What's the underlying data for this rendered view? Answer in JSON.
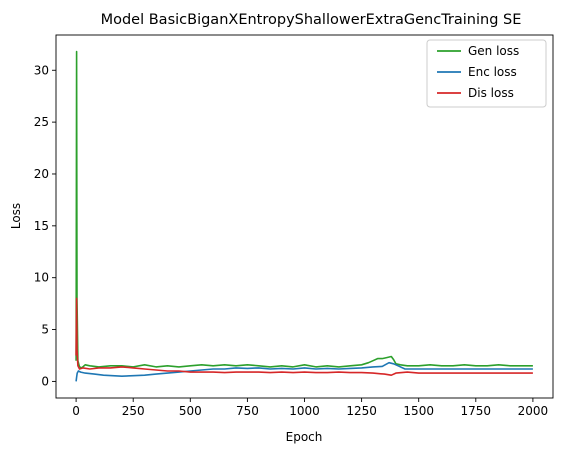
{
  "chart_data": {
    "type": "line",
    "title": "Model BasicBiganXEntropyShallowerExtraGencTraining SE",
    "xlabel": "Epoch",
    "ylabel": "Loss",
    "xlim": [
      -88,
      2088
    ],
    "ylim": [
      -1.6,
      33.4
    ],
    "xticks": [
      0,
      250,
      500,
      750,
      1000,
      1250,
      1500,
      1750,
      2000
    ],
    "yticks": [
      0,
      5,
      10,
      15,
      20,
      25,
      30
    ],
    "grid": false,
    "legend_position": "top-right",
    "series": [
      {
        "name": "Gen loss",
        "color": "#2ca02c",
        "x": [
          0,
          2,
          4,
          8,
          15,
          25,
          40,
          60,
          100,
          150,
          200,
          250,
          300,
          350,
          400,
          450,
          500,
          550,
          600,
          650,
          700,
          750,
          800,
          850,
          900,
          950,
          1000,
          1050,
          1100,
          1150,
          1200,
          1250,
          1280,
          1300,
          1320,
          1340,
          1360,
          1380,
          1390,
          1400,
          1420,
          1450,
          1500,
          1550,
          1600,
          1650,
          1700,
          1750,
          1800,
          1850,
          1900,
          1950,
          2000
        ],
        "values": [
          2.0,
          31.8,
          8.0,
          2.0,
          1.4,
          1.3,
          1.6,
          1.5,
          1.4,
          1.5,
          1.5,
          1.4,
          1.6,
          1.4,
          1.5,
          1.4,
          1.5,
          1.6,
          1.5,
          1.6,
          1.5,
          1.6,
          1.5,
          1.4,
          1.5,
          1.4,
          1.6,
          1.4,
          1.5,
          1.4,
          1.5,
          1.6,
          1.8,
          2.0,
          2.2,
          2.2,
          2.3,
          2.4,
          2.1,
          1.7,
          1.6,
          1.5,
          1.5,
          1.6,
          1.5,
          1.5,
          1.6,
          1.5,
          1.5,
          1.6,
          1.5,
          1.5,
          1.5
        ]
      },
      {
        "name": "Enc loss",
        "color": "#1f77b4",
        "x": [
          0,
          2,
          5,
          10,
          20,
          40,
          80,
          120,
          160,
          200,
          250,
          300,
          350,
          400,
          450,
          500,
          550,
          600,
          650,
          700,
          750,
          800,
          850,
          900,
          950,
          1000,
          1050,
          1100,
          1150,
          1200,
          1250,
          1300,
          1340,
          1370,
          1390,
          1410,
          1440,
          1500,
          1550,
          1600,
          1700,
          1800,
          1900,
          2000
        ],
        "values": [
          0.0,
          0.4,
          0.8,
          1.0,
          0.9,
          0.8,
          0.7,
          0.6,
          0.55,
          0.5,
          0.55,
          0.6,
          0.7,
          0.8,
          0.9,
          1.0,
          1.1,
          1.2,
          1.2,
          1.3,
          1.25,
          1.3,
          1.2,
          1.25,
          1.2,
          1.3,
          1.2,
          1.25,
          1.2,
          1.25,
          1.3,
          1.4,
          1.45,
          1.8,
          1.7,
          1.5,
          1.2,
          1.2,
          1.2,
          1.2,
          1.2,
          1.2,
          1.2,
          1.2
        ]
      },
      {
        "name": "Dis loss",
        "color": "#d62728",
        "x": [
          0,
          2,
          4,
          8,
          15,
          30,
          60,
          100,
          150,
          200,
          250,
          300,
          350,
          400,
          450,
          500,
          550,
          600,
          650,
          700,
          750,
          800,
          850,
          900,
          950,
          1000,
          1050,
          1100,
          1150,
          1200,
          1250,
          1300,
          1350,
          1380,
          1400,
          1450,
          1500,
          1550,
          1600,
          1700,
          1800,
          1900,
          2000
        ],
        "values": [
          2.5,
          8.0,
          3.0,
          1.5,
          1.2,
          1.3,
          1.2,
          1.3,
          1.3,
          1.4,
          1.3,
          1.2,
          1.1,
          1.0,
          1.0,
          0.9,
          0.9,
          0.9,
          0.85,
          0.9,
          0.9,
          0.9,
          0.85,
          0.9,
          0.85,
          0.9,
          0.85,
          0.85,
          0.9,
          0.85,
          0.85,
          0.8,
          0.7,
          0.6,
          0.8,
          0.9,
          0.8,
          0.8,
          0.8,
          0.8,
          0.8,
          0.8,
          0.8
        ]
      }
    ]
  }
}
